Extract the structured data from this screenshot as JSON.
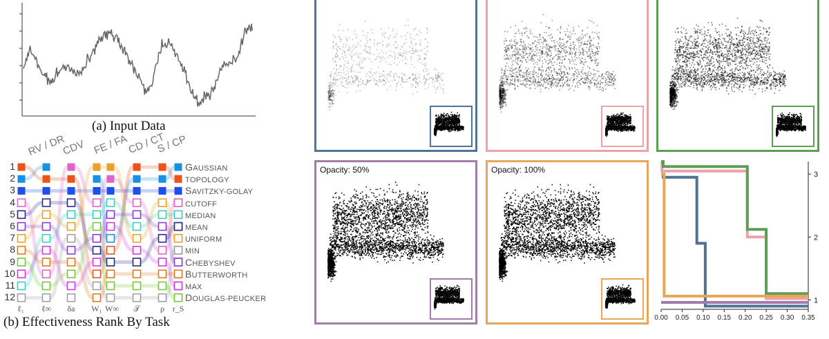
{
  "input_panel": {
    "caption": "(a)  Input Data"
  },
  "rank_panel": {
    "caption": "(b)  Effectiveness Rank By Task",
    "task_groups": [
      "RV / DR",
      "CDV",
      "FE / FA",
      "CD / CT",
      "S / CP"
    ],
    "rank_numbers": [
      "1",
      "2",
      "3",
      "4",
      "5",
      "6",
      "7",
      "8",
      "9",
      "10",
      "11",
      "12"
    ],
    "methods": [
      {
        "first": "G",
        "rest": "AUSSIAN",
        "color": "#1a90e0"
      },
      {
        "first": "",
        "rest": "TOPOLOGY",
        "color": "#e8541c"
      },
      {
        "first": "S",
        "rest": "AVITZKY-GOLAY",
        "color": "#1f4fe8"
      },
      {
        "first": "",
        "rest": "CUTOFF",
        "color": "#e064c8"
      },
      {
        "first": "",
        "rest": "MEDIAN",
        "color": "#3ccfc0"
      },
      {
        "first": "",
        "rest": "MEAN",
        "color": "#2a2a8a"
      },
      {
        "first": "",
        "rest": "UNIFORM",
        "color": "#e8a22a"
      },
      {
        "first": "",
        "rest": "MIN",
        "color": "#a0a0a0"
      },
      {
        "first": "C",
        "rest": "HEBYSHEV",
        "color": "#8a3ad8"
      },
      {
        "first": "B",
        "rest": "UTTERWORTH",
        "color": "#e07a1a"
      },
      {
        "first": "",
        "rest": "MAX",
        "color": "#d03ae0"
      },
      {
        "first": "D",
        "rest": "OUGLAS-PEUCKER",
        "color": "#7ac83a"
      }
    ],
    "metric_labels": [
      "ℓ₁",
      "ℓ∞",
      "δa",
      "W₁",
      "W∞",
      "𝒯",
      "ρ",
      "r_S"
    ],
    "columns": [
      [
        1,
        0,
        2,
        3,
        5,
        8,
        6,
        9,
        11,
        10,
        4,
        7
      ],
      [
        0,
        1,
        2,
        5,
        6,
        8,
        4,
        10,
        9,
        3,
        11,
        7
      ],
      [
        3,
        1,
        2,
        5,
        4,
        6,
        7,
        8,
        9,
        11,
        10,
        7
      ],
      [
        6,
        0,
        2,
        3,
        4,
        11,
        8,
        5,
        10,
        1,
        7,
        9
      ],
      [
        6,
        3,
        2,
        4,
        8,
        10,
        0,
        1,
        5,
        9,
        11,
        7
      ],
      [
        1,
        0,
        2,
        3,
        8,
        4,
        6,
        10,
        5,
        9,
        11,
        7
      ],
      [
        1,
        0,
        2,
        6,
        4,
        8,
        5,
        3,
        10,
        9,
        11,
        7
      ],
      [
        0,
        1,
        2,
        3,
        4,
        5,
        6,
        7,
        8,
        9,
        10,
        11
      ]
    ]
  },
  "scatter_panels": [
    {
      "label": "",
      "border": "#4f7297",
      "density": 0.12
    },
    {
      "label": "",
      "border": "#eba2a8",
      "density": 0.45
    },
    {
      "label": "",
      "border": "#5e9e54",
      "density": 0.75
    },
    {
      "label": "Opacity: 50%",
      "border": "#a37bab",
      "density": 1.0
    },
    {
      "label": "Opacity: 100%",
      "border": "#e8a65a",
      "density": 1.0
    }
  ],
  "chart_data": {
    "type": "line",
    "title": "",
    "xlabel": "",
    "ylabel": "",
    "xlim": [
      0,
      0.35
    ],
    "ylim": [
      0.85,
      3.2
    ],
    "x_ticks": [
      "0.00",
      "0.05",
      "0.10",
      "0.15",
      "0.20",
      "0.25",
      "0.30",
      "0.35"
    ],
    "y_ticks": [
      "1",
      "2",
      "3"
    ],
    "series": [
      {
        "color": "#4f7297",
        "x": [
          0,
          0.005,
          0.005,
          0.085,
          0.085,
          0.105,
          0.105,
          0.35
        ],
        "y": [
          3.0,
          3.0,
          2.95,
          2.95,
          1.9,
          1.9,
          0.9,
          0.9
        ]
      },
      {
        "color": "#eba2a8",
        "x": [
          0,
          0.002,
          0.002,
          0.205,
          0.205,
          0.25,
          0.25,
          0.35
        ],
        "y": [
          3.2,
          3.2,
          3.05,
          3.05,
          2.0,
          2.0,
          1.02,
          1.02
        ]
      },
      {
        "color": "#5e9e54",
        "x": [
          0,
          0.005,
          0.005,
          0.205,
          0.205,
          0.25,
          0.25,
          0.35
        ],
        "y": [
          3.2,
          3.2,
          3.12,
          3.12,
          2.12,
          2.12,
          1.1,
          1.1
        ]
      },
      {
        "color": "#a37bab",
        "x": [
          0,
          0.35
        ],
        "y": [
          0.96,
          0.96
        ]
      },
      {
        "color": "#e8a65a",
        "x": [
          0,
          0.007,
          0.007,
          0.35
        ],
        "y": [
          3.0,
          3.0,
          1.06,
          1.06
        ]
      }
    ]
  }
}
